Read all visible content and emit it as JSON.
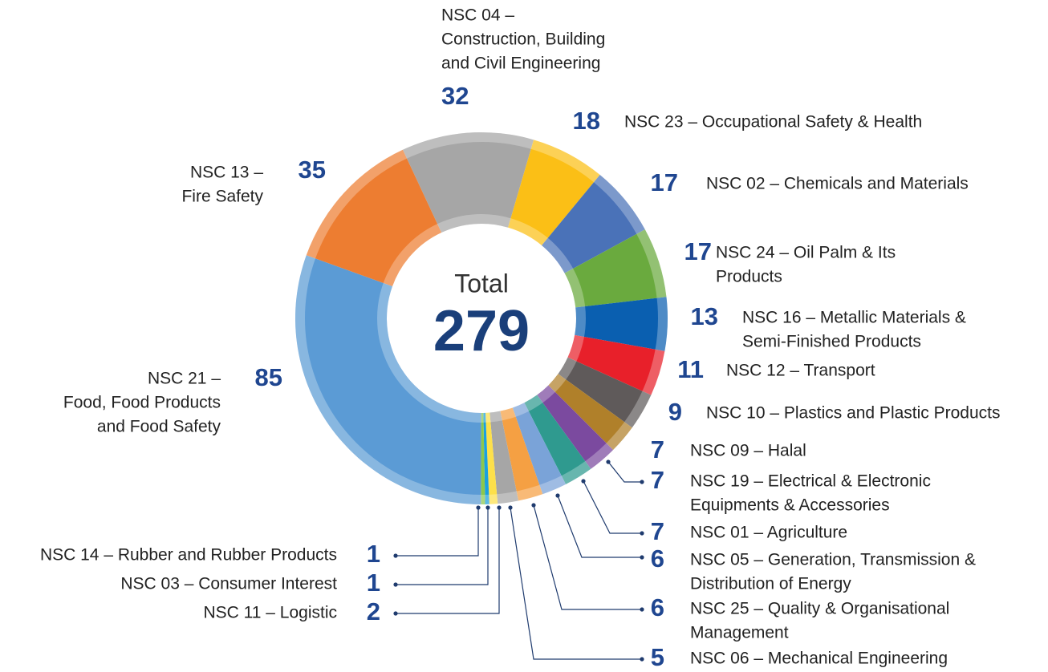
{
  "chart_data": {
    "type": "donut",
    "center_label": "Total",
    "total": 279,
    "categories": [
      [
        "NSC 04 –",
        "Construction, Building",
        "and Civil Engineering"
      ],
      [
        "NSC 23 – Occupational Safety & Health"
      ],
      [
        "NSC 02 – Chemicals and Materials"
      ],
      [
        "NSC 24 – Oil Palm & Its",
        "Products"
      ],
      [
        "NSC 16 – Metallic Materials &",
        "Semi-Finished Products"
      ],
      [
        "NSC 12 – Transport"
      ],
      [
        "NSC 10 – Plastics and Plastic Products"
      ],
      [
        "NSC 09 – Halal"
      ],
      [
        "NSC 19 – Electrical & Electronic",
        "Equipments & Accessories"
      ],
      [
        "NSC 01 – Agriculture"
      ],
      [
        "NSC 05 – Generation, Transmission &",
        "Distribution of Energy"
      ],
      [
        "NSC 25 – Quality & Organisational",
        "Management"
      ],
      [
        "NSC 06 – Mechanical Engineering"
      ],
      [
        "NSC 11 – Logistic"
      ],
      [
        "NSC 03 – Consumer Interest"
      ],
      [
        "NSC 14 – Rubber and Rubber Products"
      ],
      [
        "NSC 21 –",
        "Food, Food Products",
        "and Food Safety"
      ],
      [
        "NSC 13 –",
        "Fire Safety"
      ]
    ],
    "values": [
      32,
      18,
      17,
      17,
      13,
      11,
      9,
      7,
      7,
      7,
      6,
      6,
      5,
      2,
      1,
      1,
      85,
      35
    ],
    "colors": [
      "#a6a6a6",
      "#fbbf16",
      "#4a72b8",
      "#6aaa3e",
      "#0a5fb0",
      "#e8202a",
      "#5f5a5a",
      "#b0802a",
      "#7b4a9f",
      "#2f9a8f",
      "#7aa3d8",
      "#f5a043",
      "#a6a6a6",
      "#fde04a",
      "#1aa0e0",
      "#8cc84b",
      "#5b9bd5",
      "#ed7d31"
    ]
  }
}
